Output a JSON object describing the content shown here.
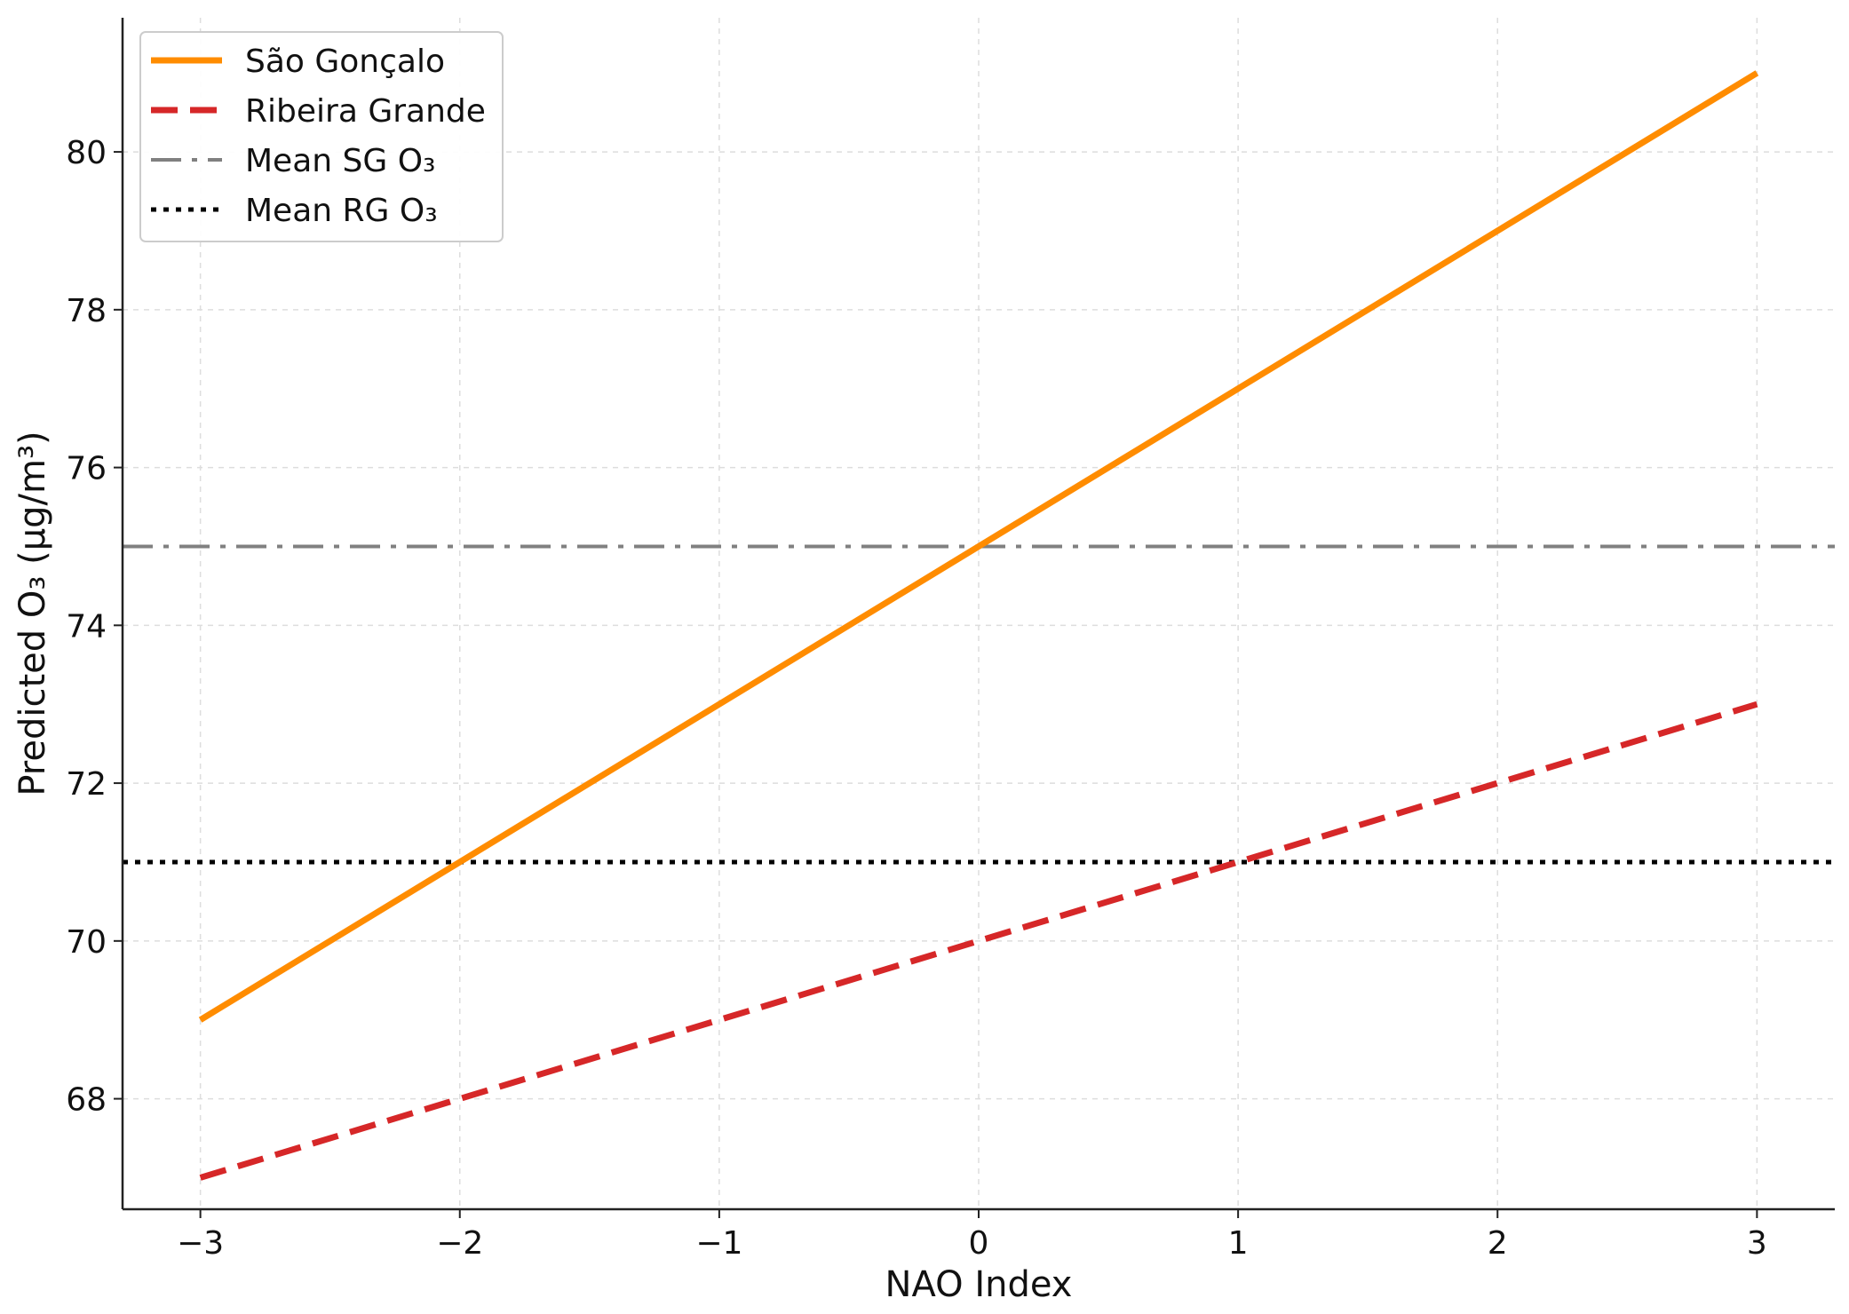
{
  "chart_data": {
    "type": "line",
    "title": "",
    "xlabel": "NAO Index",
    "ylabel": "Predicted O₃ (µg/m³)",
    "xlim": [
      -3.3,
      3.3
    ],
    "ylim": [
      66.6,
      81.7
    ],
    "xticks": [
      -3,
      -2,
      -1,
      0,
      1,
      2,
      3
    ],
    "xtick_labels": [
      "−3",
      "−2",
      "−1",
      "0",
      "1",
      "2",
      "3"
    ],
    "yticks": [
      68,
      70,
      72,
      74,
      76,
      78,
      80
    ],
    "ytick_labels": [
      "68",
      "70",
      "72",
      "74",
      "76",
      "78",
      "80"
    ],
    "grid": true,
    "legend_position": "top-left",
    "series": [
      {
        "name": "São Gonçalo",
        "style": "solid",
        "color": "#ff8c00",
        "x": [
          -3,
          3
        ],
        "y": [
          69,
          81
        ]
      },
      {
        "name": "Ribeira Grande",
        "style": "dashed",
        "color": "#d62728",
        "x": [
          -3,
          3
        ],
        "y": [
          67,
          73
        ]
      }
    ],
    "reference_lines": [
      {
        "name": "Mean SG O₃",
        "style": "dashdot",
        "color": "#808080",
        "y": 75
      },
      {
        "name": "Mean RG O₃",
        "style": "dotted",
        "color": "#000000",
        "y": 71
      }
    ]
  }
}
